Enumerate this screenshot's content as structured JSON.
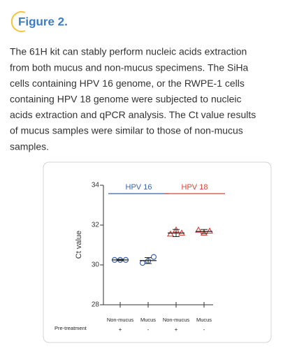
{
  "header": {
    "title": "Figure 2."
  },
  "paragraph": [
    "The 61H kit can stably perform nucleic acids extraction",
    "from both mucus and non-mucus specimens. The SiHa",
    "cells containing HPV 16 genome, or the RWPE-1 cells",
    "containing HPV 18 genome were subjected to nucleic",
    "acids extraction and qPCR analysis. The Ct value results",
    "of mucus samples were similar to those of non-mucus",
    "samples."
  ],
  "chart_data": {
    "type": "dot",
    "y_label": "Ct value",
    "ylim": [
      28,
      34
    ],
    "yticks": [
      28,
      30,
      32,
      34
    ],
    "categories": [
      "Non-mucus",
      "Mucus",
      "Non-mucus",
      "Mucus"
    ],
    "row_label": "Pre-treatment",
    "treatment": [
      "+",
      "-",
      "+",
      "-"
    ],
    "series": [
      {
        "name": "HPV 16",
        "color": "#3b64ad",
        "marker": "circle",
        "values": [
          [
            30.25,
            30.25,
            30.25
          ],
          [
            30.1,
            30.2,
            30.4
          ],
          null,
          null
        ],
        "means": [
          30.25,
          30.22,
          null,
          null
        ],
        "errors": [
          0.03,
          0.15,
          null,
          null
        ]
      },
      {
        "name": "HPV 18",
        "color": "#d9453b",
        "marker": "triangle",
        "values": [
          null,
          null,
          [
            31.55,
            31.75,
            31.6
          ],
          [
            31.75,
            31.6,
            31.7
          ]
        ],
        "means": [
          null,
          null,
          31.6,
          31.68
        ],
        "errors": [
          null,
          null,
          0.18,
          0.1
        ]
      }
    ]
  }
}
